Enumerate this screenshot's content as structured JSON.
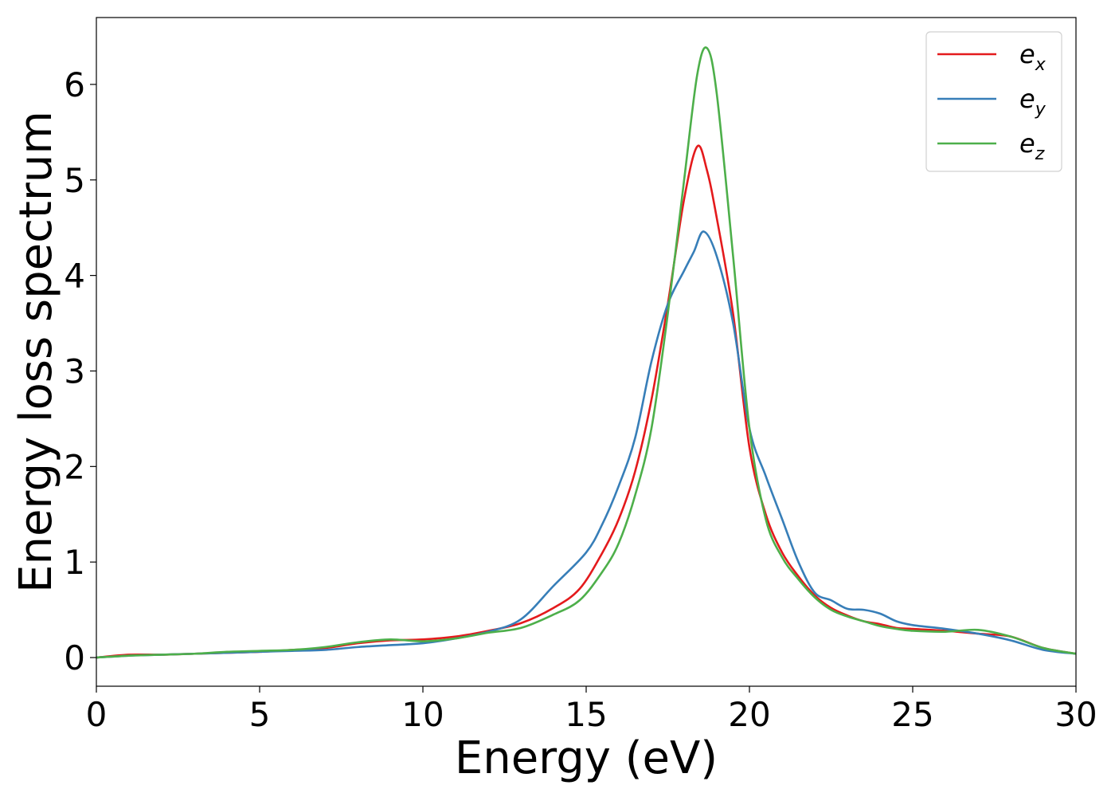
{
  "chart_data": {
    "type": "line",
    "xlabel": "Energy (eV)",
    "ylabel": "Energy loss spectrum",
    "xlim": [
      0,
      30
    ],
    "ylim": [
      -0.3,
      6.7
    ],
    "xticks": [
      0,
      5,
      10,
      15,
      20,
      25,
      30
    ],
    "yticks": [
      0,
      1,
      2,
      3,
      4,
      5,
      6
    ],
    "grid": false,
    "legend_position": "top-right",
    "series": [
      {
        "name": "e_x",
        "label_base": "e",
        "label_sub": "x",
        "color": "#e41a1c",
        "x": [
          0,
          1,
          2,
          3,
          4,
          5,
          6,
          7,
          8,
          9,
          10,
          11,
          12,
          13,
          14,
          14.8,
          15.5,
          16,
          16.5,
          17,
          17.5,
          18,
          18.4,
          18.7,
          19,
          19.5,
          20,
          20.5,
          21,
          21.5,
          22,
          22.5,
          23,
          23.5,
          24,
          24.5,
          25,
          26,
          27,
          28,
          29,
          30
        ],
        "y": [
          0.0,
          0.03,
          0.03,
          0.04,
          0.05,
          0.06,
          0.08,
          0.1,
          0.15,
          0.18,
          0.19,
          0.22,
          0.28,
          0.36,
          0.52,
          0.72,
          1.1,
          1.45,
          1.95,
          2.7,
          3.7,
          4.8,
          5.35,
          5.1,
          4.6,
          3.6,
          2.2,
          1.5,
          1.1,
          0.85,
          0.65,
          0.52,
          0.44,
          0.38,
          0.35,
          0.31,
          0.3,
          0.28,
          0.25,
          0.22,
          0.1,
          0.04
        ]
      },
      {
        "name": "e_y",
        "label_base": "e",
        "label_sub": "y",
        "color": "#377eb8",
        "x": [
          0,
          1,
          2,
          3,
          4,
          5,
          6,
          7,
          8,
          9,
          10,
          11,
          12,
          13,
          14,
          15,
          15.5,
          16,
          16.5,
          17,
          17.5,
          18,
          18.3,
          18.6,
          19,
          19.5,
          20,
          20.5,
          21,
          21.5,
          22,
          22.5,
          23,
          23.5,
          24,
          24.5,
          25,
          26,
          27,
          28,
          29,
          30
        ],
        "y": [
          0.0,
          0.02,
          0.03,
          0.04,
          0.05,
          0.06,
          0.07,
          0.08,
          0.11,
          0.13,
          0.15,
          0.2,
          0.27,
          0.4,
          0.75,
          1.1,
          1.4,
          1.8,
          2.3,
          3.1,
          3.7,
          4.05,
          4.25,
          4.46,
          4.2,
          3.5,
          2.4,
          1.9,
          1.45,
          1.0,
          0.68,
          0.6,
          0.51,
          0.5,
          0.46,
          0.38,
          0.34,
          0.3,
          0.25,
          0.18,
          0.08,
          0.04
        ]
      },
      {
        "name": "e_z",
        "label_base": "e",
        "label_sub": "z",
        "color": "#4daf4a",
        "x": [
          0,
          1,
          2,
          3,
          4,
          5,
          6,
          7,
          8,
          9,
          10,
          11,
          12,
          13,
          14,
          14.8,
          15.5,
          16,
          16.5,
          17,
          17.5,
          18,
          18.4,
          18.7,
          19,
          19.5,
          20,
          20.5,
          21,
          21.5,
          22,
          22.5,
          23,
          23.5,
          24,
          24.5,
          25,
          26,
          27,
          28,
          29,
          30
        ],
        "y": [
          0.0,
          0.02,
          0.03,
          0.04,
          0.06,
          0.07,
          0.08,
          0.11,
          0.16,
          0.19,
          0.17,
          0.2,
          0.26,
          0.31,
          0.45,
          0.6,
          0.9,
          1.2,
          1.7,
          2.4,
          3.6,
          5.0,
          6.1,
          6.38,
          5.9,
          4.2,
          2.4,
          1.45,
          1.05,
          0.82,
          0.63,
          0.5,
          0.43,
          0.38,
          0.33,
          0.3,
          0.28,
          0.27,
          0.29,
          0.22,
          0.1,
          0.04
        ]
      }
    ]
  }
}
